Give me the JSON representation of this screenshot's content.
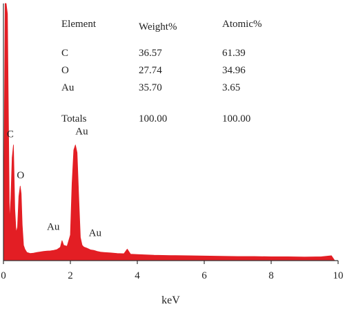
{
  "chart_data": {
    "type": "area",
    "title": "",
    "xlabel": "keV",
    "ylabel": "",
    "xlim": [
      0,
      10
    ],
    "x_ticks": [
      0,
      2,
      4,
      6,
      8,
      10
    ],
    "x_tick_labels": [
      "0",
      "2",
      "4",
      "6",
      "8",
      "10"
    ],
    "y_visible": false,
    "grid": false,
    "colors": {
      "fill": "#e31e24",
      "axis": "#333333",
      "text": "#222222"
    },
    "spectrum": {
      "x": [
        0.0,
        0.05,
        0.08,
        0.12,
        0.18,
        0.22,
        0.26,
        0.3,
        0.34,
        0.38,
        0.42,
        0.46,
        0.5,
        0.53,
        0.56,
        0.6,
        0.64,
        0.7,
        0.8,
        0.9,
        1.0,
        1.1,
        1.2,
        1.3,
        1.4,
        1.5,
        1.6,
        1.7,
        1.75,
        1.8,
        1.9,
        2.0,
        2.05,
        2.1,
        2.15,
        2.2,
        2.25,
        2.3,
        2.35,
        2.4,
        2.5,
        2.6,
        2.7,
        2.8,
        2.9,
        3.0,
        3.2,
        3.4,
        3.6,
        3.7,
        3.8,
        4.0,
        4.5,
        5.0,
        5.5,
        6.0,
        6.5,
        7.0,
        7.5,
        8.0,
        8.5,
        9.0,
        9.5,
        9.8,
        9.9
      ],
      "y": [
        3,
        100,
        100,
        96,
        15,
        24,
        40,
        45,
        20,
        11,
        13,
        25,
        29,
        26,
        14,
        6,
        4.5,
        3.2,
        2.8,
        2.9,
        3.2,
        3.4,
        3.6,
        3.7,
        3.8,
        4.0,
        4.3,
        5.2,
        7.8,
        6.0,
        5.6,
        10,
        30,
        43,
        45,
        42,
        25,
        9,
        6,
        5.3,
        4.8,
        4.2,
        4.0,
        3.6,
        3.3,
        3.2,
        3.0,
        2.8,
        2.7,
        4.5,
        2.5,
        2.4,
        2.1,
        2.0,
        1.9,
        1.8,
        1.7,
        1.6,
        1.6,
        1.5,
        1.5,
        1.4,
        1.5,
        1.9,
        0
      ]
    },
    "peak_labels": [
      {
        "text": "C",
        "x": 0.1,
        "y": 48
      },
      {
        "text": "O",
        "x": 0.4,
        "y": 32
      },
      {
        "text": "Au",
        "x": 1.3,
        "y": 12
      },
      {
        "text": "Au",
        "x": 2.15,
        "y": 49
      },
      {
        "text": "Au",
        "x": 2.55,
        "y": 9.5
      }
    ],
    "table": {
      "headers": [
        "Element",
        "Weight%",
        "Atomic%"
      ],
      "rows": [
        [
          "C",
          "36.57",
          "61.39"
        ],
        [
          "O",
          "27.74",
          "34.96"
        ],
        [
          "Au",
          "35.70",
          "3.65"
        ]
      ],
      "totals": [
        "Totals",
        "100.00",
        "100.00"
      ]
    }
  }
}
